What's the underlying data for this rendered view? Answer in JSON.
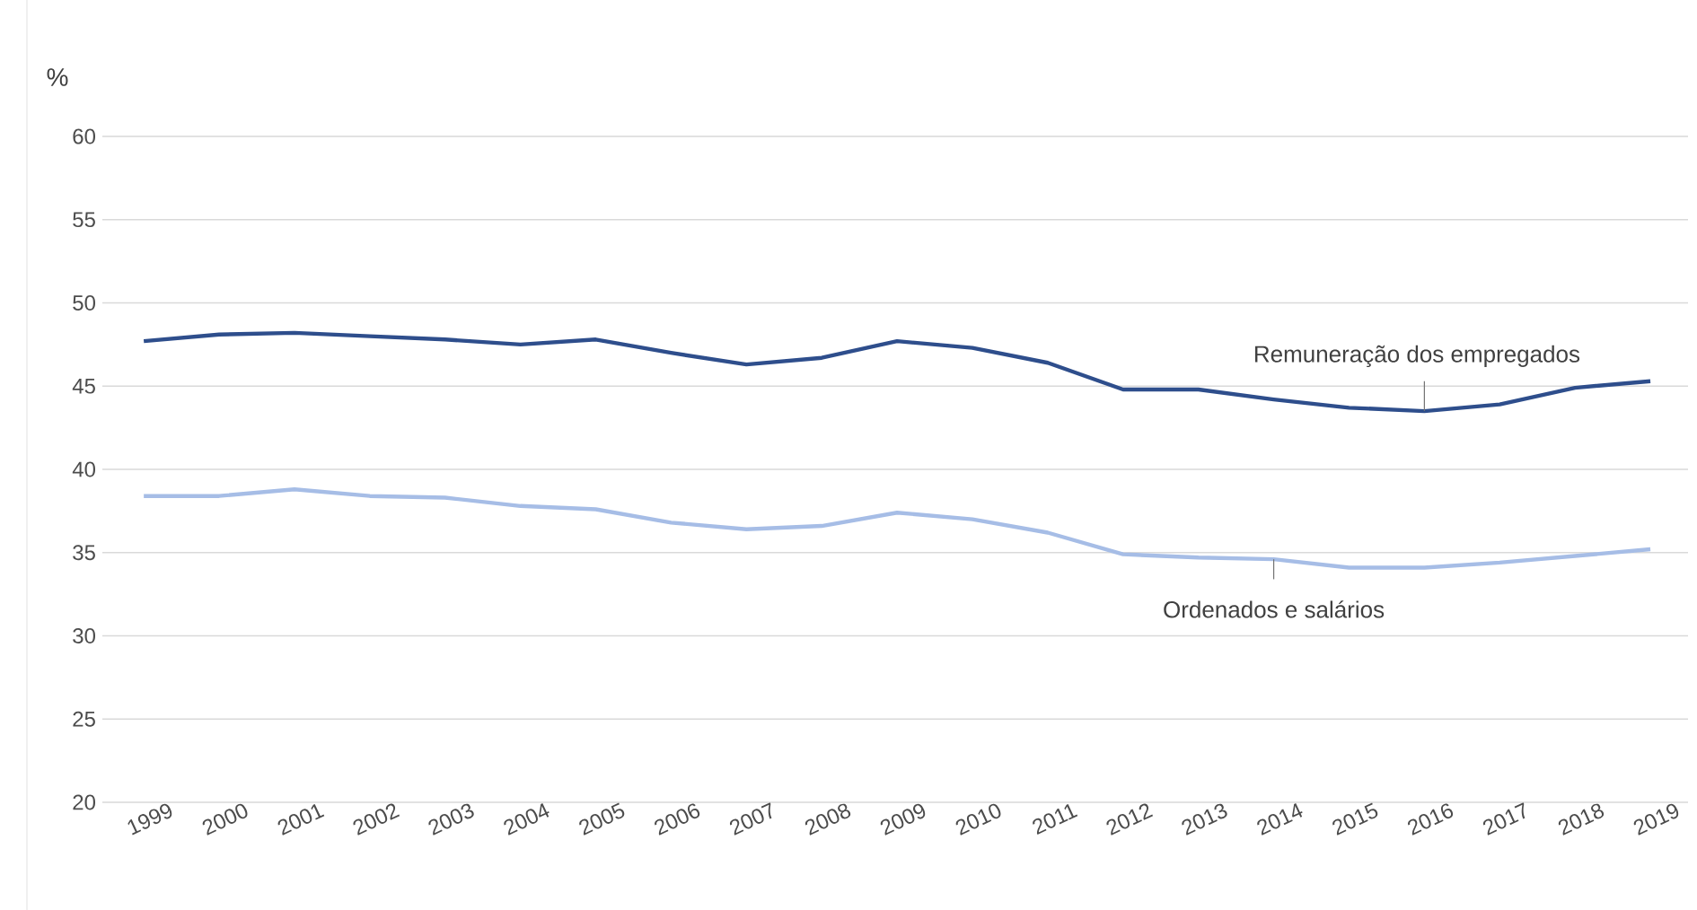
{
  "chart_data": {
    "type": "line",
    "ylabel": "%",
    "categories": [
      "1999",
      "2000",
      "2001",
      "2002",
      "2003",
      "2004",
      "2005",
      "2006",
      "2007",
      "2008",
      "2009",
      "2010",
      "2011",
      "2012",
      "2013",
      "2014",
      "2015",
      "2016",
      "2017",
      "2018",
      "2019"
    ],
    "series": [
      {
        "name": "Remuneração dos empregados",
        "color": "#2e4e8c",
        "values": [
          47.7,
          48.1,
          48.2,
          48.0,
          47.8,
          47.5,
          47.8,
          47.0,
          46.3,
          46.7,
          47.7,
          47.3,
          46.4,
          44.8,
          44.8,
          44.2,
          43.7,
          43.5,
          43.9,
          44.9,
          45.3
        ]
      },
      {
        "name": "Ordenados e salários",
        "color": "#a6bde6",
        "values": [
          38.4,
          38.4,
          38.8,
          38.4,
          38.3,
          37.8,
          37.6,
          36.8,
          36.4,
          36.6,
          37.4,
          37.0,
          36.2,
          34.9,
          34.7,
          34.6,
          34.1,
          34.1,
          34.4,
          34.8,
          35.2
        ]
      }
    ],
    "ylim": [
      20,
      60
    ],
    "yticks": [
      20,
      25,
      30,
      35,
      40,
      45,
      50,
      55,
      60
    ],
    "grid": "y",
    "legend": false,
    "marker": "none",
    "line_style": "solid"
  }
}
